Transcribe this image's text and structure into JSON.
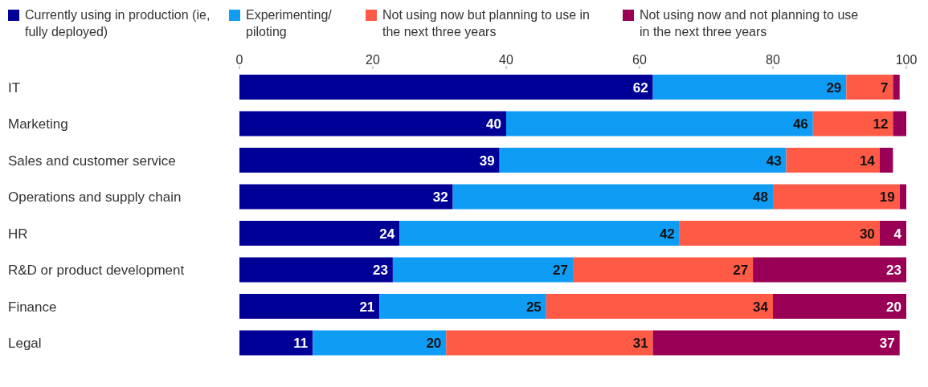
{
  "chart_data": {
    "type": "bar",
    "orientation": "horizontal",
    "stacked": true,
    "legend": "top left",
    "grid": false,
    "categories": [
      "IT",
      "Marketing",
      "Sales and customer service",
      "Operations and supply chain",
      "HR",
      "R&D or product development",
      "Finance",
      "Legal"
    ],
    "xlim": [
      0,
      100
    ],
    "xticks": [
      0,
      20,
      40,
      60,
      80,
      100
    ],
    "series": [
      {
        "name": "Currently using in production (ie, fully deployed)",
        "color": "#000096",
        "values": [
          62,
          40,
          39,
          32,
          24,
          23,
          21,
          11
        ],
        "value_labels": [
          "62",
          "40",
          "39",
          "32",
          "24",
          "23",
          "21",
          "11"
        ]
      },
      {
        "name": "Experimenting/ piloting",
        "color": "#0f9cf5",
        "values": [
          29,
          46,
          43,
          48,
          42,
          27,
          25,
          20
        ],
        "value_labels": [
          "29",
          "46",
          "43",
          "48",
          "42",
          "27",
          "25",
          "20"
        ]
      },
      {
        "name": "Not using now but planning to use in the next three years",
        "color": "#ff5a46",
        "values": [
          7,
          12,
          14,
          19,
          30,
          27,
          34,
          31
        ],
        "value_labels": [
          "7",
          "12",
          "14",
          "19",
          "30",
          "27",
          "34",
          "31"
        ]
      },
      {
        "name": "Not using now and not planning to use in the next three years",
        "color": "#990055",
        "values": [
          1,
          2,
          2,
          1,
          4,
          23,
          20,
          37
        ],
        "value_labels": [
          null,
          null,
          null,
          null,
          "4",
          "23",
          "20",
          "37"
        ]
      }
    ]
  }
}
